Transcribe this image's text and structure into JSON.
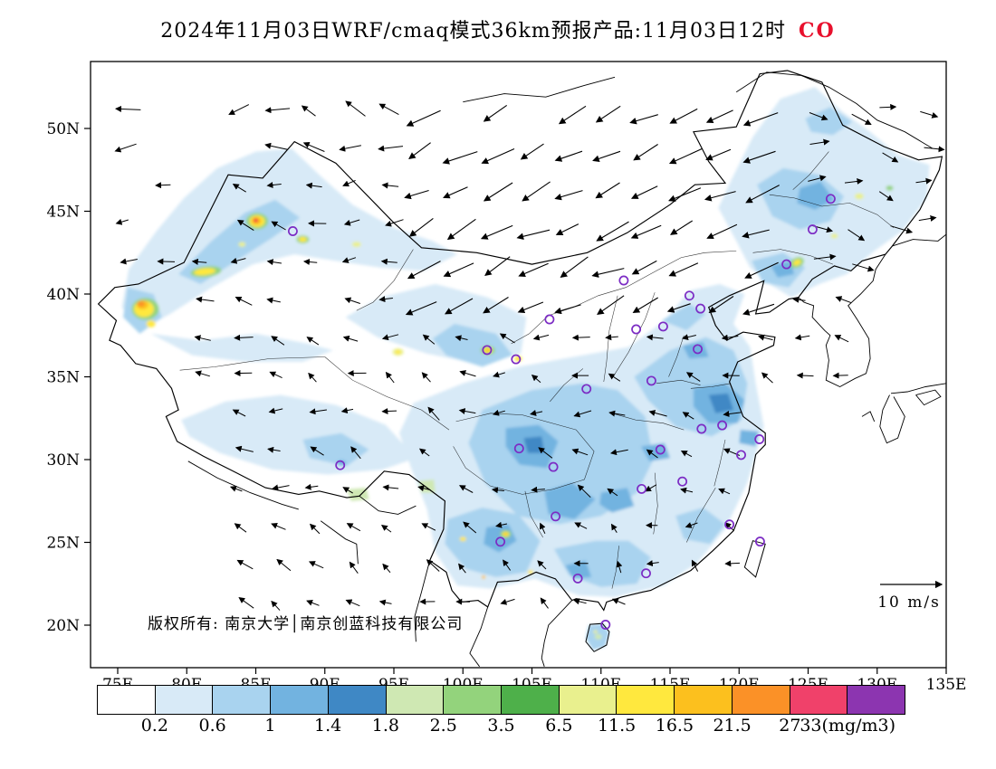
{
  "title": {
    "text": "2024年11月03日WRF/cmaq模式36km预报产品:11月03日12时",
    "species": "CO",
    "species_color": "#e8102d"
  },
  "axes": {
    "lat_ticks": [
      "50N",
      "45N",
      "40N",
      "35N",
      "30N",
      "25N",
      "20N"
    ],
    "lon_ticks": [
      "75E",
      "80E",
      "85E",
      "90E",
      "95E",
      "100E",
      "105E",
      "110E",
      "115E",
      "120E",
      "125E",
      "130E",
      "135E"
    ]
  },
  "annotations": {
    "watermark": "版权所有: 南京大学│南京创蓝科技有限公司",
    "wind_scale": "10 m/s"
  },
  "colorbar": {
    "labels": [
      "0.2",
      "0.6",
      "1",
      "1.4",
      "1.8",
      "2.5",
      "3.5",
      "6.5",
      "11.5",
      "16.5",
      "21.5",
      "27",
      "33(mg/m3)"
    ],
    "colors": [
      "#ffffff",
      "#d8eaf7",
      "#a9d3ef",
      "#72b3e0",
      "#3f88c5",
      "#cfe8b3",
      "#93d37c",
      "#4eb04a",
      "#e9f08e",
      "#ffe83e",
      "#fcc01e",
      "#fb9127",
      "#f0416a",
      "#8c35b0"
    ]
  },
  "chart_data": {
    "type": "heatmap",
    "title": "2024年11月03日WRF/cmaq模式36km预报产品:11月03日12时 CO",
    "variable": "CO",
    "unit": "mg/m3",
    "model": "WRF/cmaq 36km",
    "valid_time": "11月03日12时",
    "lon_range": [
      75,
      135
    ],
    "lat_range": [
      20,
      50
    ],
    "lon_tick_step_deg": 5,
    "lat_tick_step_deg": 5,
    "contour_levels_mg_m3": [
      0.2,
      0.6,
      1,
      1.4,
      1.8,
      2.5,
      3.5,
      6.5,
      11.5,
      16.5,
      21.5,
      27,
      33
    ],
    "wind_reference_ms": 10,
    "field_description": "CO concentration mostly 0.2-1.8 mg/m3 (light blues) over eastern/southern China, NE China and northern Xinjiang; localized maxima 6.5-33 mg/m3 near Kashgar, Shihezi, Xining, Kunming and Shenyang; strong northeasterly wind band across 40-48N",
    "high_co_hotspots_lon_lat": [
      [
        76.8,
        39.3
      ],
      [
        81.3,
        41.3
      ],
      [
        85.0,
        44.45
      ],
      [
        88.4,
        43.3
      ],
      [
        95.3,
        36.5
      ],
      [
        101.8,
        36.6
      ],
      [
        104.0,
        36.1
      ],
      [
        103.1,
        25.5
      ],
      [
        100.0,
        25.2
      ],
      [
        124.2,
        41.9
      ]
    ],
    "station_markers_lon_lat": [
      [
        87.68,
        43.8
      ],
      [
        101.75,
        36.62
      ],
      [
        103.84,
        36.06
      ],
      [
        106.27,
        38.47
      ],
      [
        111.65,
        40.82
      ],
      [
        112.55,
        37.87
      ],
      [
        108.95,
        34.27
      ],
      [
        116.4,
        39.9
      ],
      [
        117.2,
        39.12
      ],
      [
        114.5,
        38.04
      ],
      [
        113.65,
        34.76
      ],
      [
        117.0,
        36.67
      ],
      [
        118.78,
        32.07
      ],
      [
        117.28,
        31.86
      ],
      [
        121.47,
        31.23
      ],
      [
        120.15,
        30.28
      ],
      [
        114.3,
        30.6
      ],
      [
        112.94,
        28.23
      ],
      [
        115.89,
        28.68
      ],
      [
        119.3,
        26.08
      ],
      [
        121.52,
        25.05
      ],
      [
        113.26,
        23.13
      ],
      [
        108.32,
        22.82
      ],
      [
        106.71,
        26.57
      ],
      [
        102.71,
        25.04
      ],
      [
        104.07,
        30.67
      ],
      [
        106.55,
        29.56
      ],
      [
        125.32,
        43.9
      ],
      [
        123.43,
        41.8
      ],
      [
        126.63,
        45.75
      ],
      [
        91.11,
        29.66
      ],
      [
        110.33,
        20.03
      ]
    ]
  }
}
